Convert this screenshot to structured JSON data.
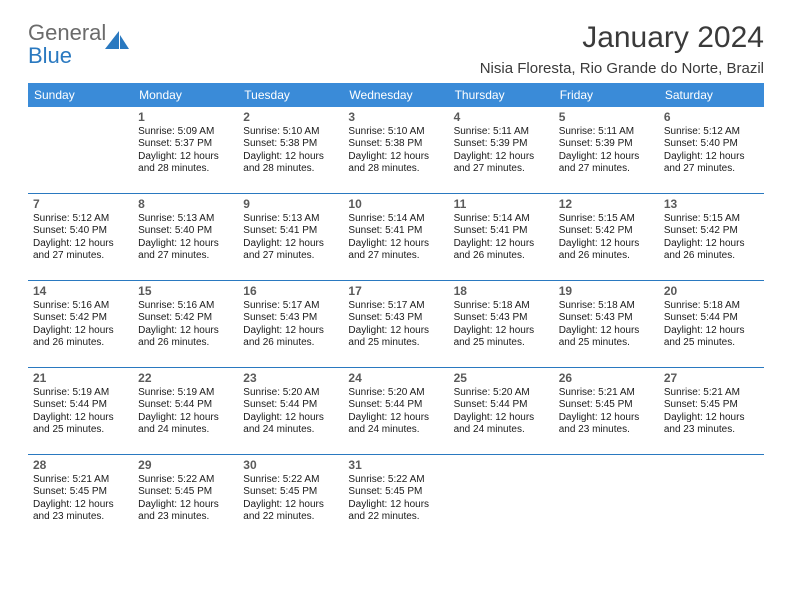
{
  "logo": {
    "text1": "General",
    "text2": "Blue"
  },
  "title": "January 2024",
  "location": "Nisia Floresta, Rio Grande do Norte, Brazil",
  "colors": {
    "header_bg": "#3a8bd8",
    "header_text": "#ffffff",
    "row_border": "#2a79c0",
    "logo_gray": "#6b6b6b",
    "logo_blue": "#2a79c0",
    "body_text": "#1a1a1a",
    "daynum": "#5a5a5a",
    "title_text": "#3a3a3a",
    "page_bg": "#ffffff"
  },
  "typography": {
    "title_fontsize": 30,
    "location_fontsize": 15,
    "header_fontsize": 12,
    "daynum_fontsize": 12,
    "body_fontsize": 10,
    "font_family": "Arial"
  },
  "labels": {
    "sunrise": "Sunrise:",
    "sunset": "Sunset:",
    "daylight": "Daylight:"
  },
  "weekdays": [
    "Sunday",
    "Monday",
    "Tuesday",
    "Wednesday",
    "Thursday",
    "Friday",
    "Saturday"
  ],
  "first_weekday_index": 1,
  "days": [
    {
      "n": "1",
      "sunrise": "5:09 AM",
      "sunset": "5:37 PM",
      "daylight": "12 hours and 28 minutes."
    },
    {
      "n": "2",
      "sunrise": "5:10 AM",
      "sunset": "5:38 PM",
      "daylight": "12 hours and 28 minutes."
    },
    {
      "n": "3",
      "sunrise": "5:10 AM",
      "sunset": "5:38 PM",
      "daylight": "12 hours and 28 minutes."
    },
    {
      "n": "4",
      "sunrise": "5:11 AM",
      "sunset": "5:39 PM",
      "daylight": "12 hours and 27 minutes."
    },
    {
      "n": "5",
      "sunrise": "5:11 AM",
      "sunset": "5:39 PM",
      "daylight": "12 hours and 27 minutes."
    },
    {
      "n": "6",
      "sunrise": "5:12 AM",
      "sunset": "5:40 PM",
      "daylight": "12 hours and 27 minutes."
    },
    {
      "n": "7",
      "sunrise": "5:12 AM",
      "sunset": "5:40 PM",
      "daylight": "12 hours and 27 minutes."
    },
    {
      "n": "8",
      "sunrise": "5:13 AM",
      "sunset": "5:40 PM",
      "daylight": "12 hours and 27 minutes."
    },
    {
      "n": "9",
      "sunrise": "5:13 AM",
      "sunset": "5:41 PM",
      "daylight": "12 hours and 27 minutes."
    },
    {
      "n": "10",
      "sunrise": "5:14 AM",
      "sunset": "5:41 PM",
      "daylight": "12 hours and 27 minutes."
    },
    {
      "n": "11",
      "sunrise": "5:14 AM",
      "sunset": "5:41 PM",
      "daylight": "12 hours and 26 minutes."
    },
    {
      "n": "12",
      "sunrise": "5:15 AM",
      "sunset": "5:42 PM",
      "daylight": "12 hours and 26 minutes."
    },
    {
      "n": "13",
      "sunrise": "5:15 AM",
      "sunset": "5:42 PM",
      "daylight": "12 hours and 26 minutes."
    },
    {
      "n": "14",
      "sunrise": "5:16 AM",
      "sunset": "5:42 PM",
      "daylight": "12 hours and 26 minutes."
    },
    {
      "n": "15",
      "sunrise": "5:16 AM",
      "sunset": "5:42 PM",
      "daylight": "12 hours and 26 minutes."
    },
    {
      "n": "16",
      "sunrise": "5:17 AM",
      "sunset": "5:43 PM",
      "daylight": "12 hours and 26 minutes."
    },
    {
      "n": "17",
      "sunrise": "5:17 AM",
      "sunset": "5:43 PM",
      "daylight": "12 hours and 25 minutes."
    },
    {
      "n": "18",
      "sunrise": "5:18 AM",
      "sunset": "5:43 PM",
      "daylight": "12 hours and 25 minutes."
    },
    {
      "n": "19",
      "sunrise": "5:18 AM",
      "sunset": "5:43 PM",
      "daylight": "12 hours and 25 minutes."
    },
    {
      "n": "20",
      "sunrise": "5:18 AM",
      "sunset": "5:44 PM",
      "daylight": "12 hours and 25 minutes."
    },
    {
      "n": "21",
      "sunrise": "5:19 AM",
      "sunset": "5:44 PM",
      "daylight": "12 hours and 25 minutes."
    },
    {
      "n": "22",
      "sunrise": "5:19 AM",
      "sunset": "5:44 PM",
      "daylight": "12 hours and 24 minutes."
    },
    {
      "n": "23",
      "sunrise": "5:20 AM",
      "sunset": "5:44 PM",
      "daylight": "12 hours and 24 minutes."
    },
    {
      "n": "24",
      "sunrise": "5:20 AM",
      "sunset": "5:44 PM",
      "daylight": "12 hours and 24 minutes."
    },
    {
      "n": "25",
      "sunrise": "5:20 AM",
      "sunset": "5:44 PM",
      "daylight": "12 hours and 24 minutes."
    },
    {
      "n": "26",
      "sunrise": "5:21 AM",
      "sunset": "5:45 PM",
      "daylight": "12 hours and 23 minutes."
    },
    {
      "n": "27",
      "sunrise": "5:21 AM",
      "sunset": "5:45 PM",
      "daylight": "12 hours and 23 minutes."
    },
    {
      "n": "28",
      "sunrise": "5:21 AM",
      "sunset": "5:45 PM",
      "daylight": "12 hours and 23 minutes."
    },
    {
      "n": "29",
      "sunrise": "5:22 AM",
      "sunset": "5:45 PM",
      "daylight": "12 hours and 23 minutes."
    },
    {
      "n": "30",
      "sunrise": "5:22 AM",
      "sunset": "5:45 PM",
      "daylight": "12 hours and 22 minutes."
    },
    {
      "n": "31",
      "sunrise": "5:22 AM",
      "sunset": "5:45 PM",
      "daylight": "12 hours and 22 minutes."
    }
  ]
}
